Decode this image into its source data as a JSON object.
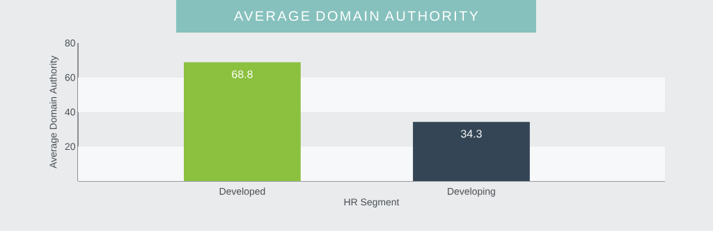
{
  "chart_data": {
    "type": "bar",
    "title": "AVERAGE DOMAIN AUTHORITY",
    "xlabel": "HR Segment",
    "ylabel": "Average Domain Authority",
    "categories": [
      "Developed",
      "Developing"
    ],
    "values": [
      68.8,
      34.3
    ],
    "colors": [
      "#8cc03f",
      "#344656"
    ],
    "data_labels": true,
    "ylim": [
      0,
      80
    ],
    "yticks": [
      20,
      40,
      60,
      80
    ],
    "bands": [
      {
        "axis": "y",
        "from": 0,
        "to": 20,
        "color": "#f7f8f9"
      },
      {
        "axis": "y",
        "from": 40,
        "to": 60,
        "color": "#f7f8f9"
      }
    ]
  }
}
